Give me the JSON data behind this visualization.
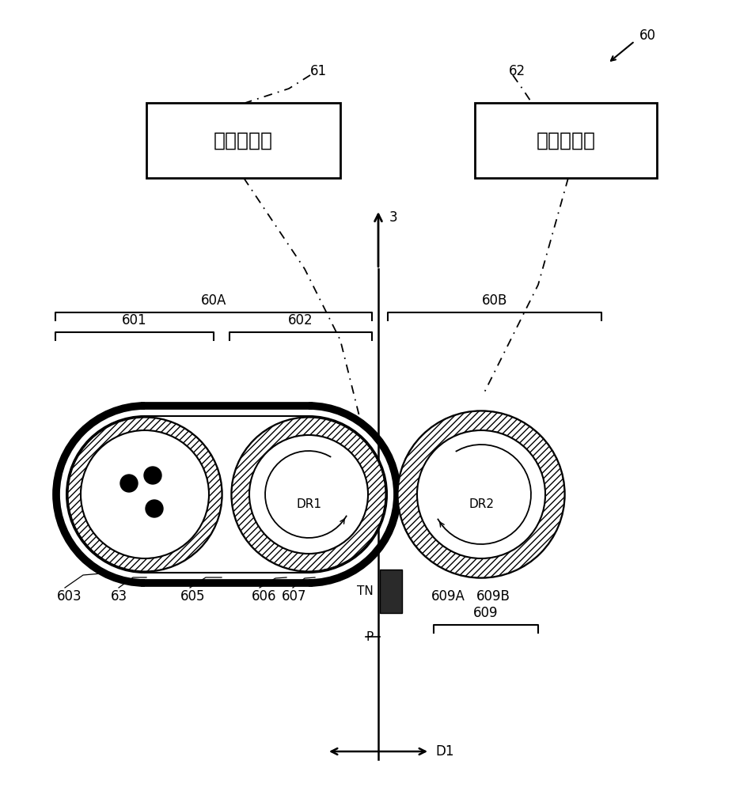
{
  "bg_color": "#ffffff",
  "box1_text": "定影辊电机",
  "box2_text": "加压辊电机",
  "label_60": "60",
  "label_61": "61",
  "label_62": "62",
  "label_3": "3",
  "label_60A": "60A",
  "label_60B": "60B",
  "label_601": "601",
  "label_602": "602",
  "label_603": "603",
  "label_63": "63",
  "label_605": "605",
  "label_606": "606",
  "label_607": "607",
  "label_609A": "609A",
  "label_609B": "609B",
  "label_609": "609",
  "label_TN": "TN",
  "label_P": "P",
  "label_D1": "D1",
  "font_size_label": 12,
  "font_size_box": 18,
  "line_color": "#000000"
}
